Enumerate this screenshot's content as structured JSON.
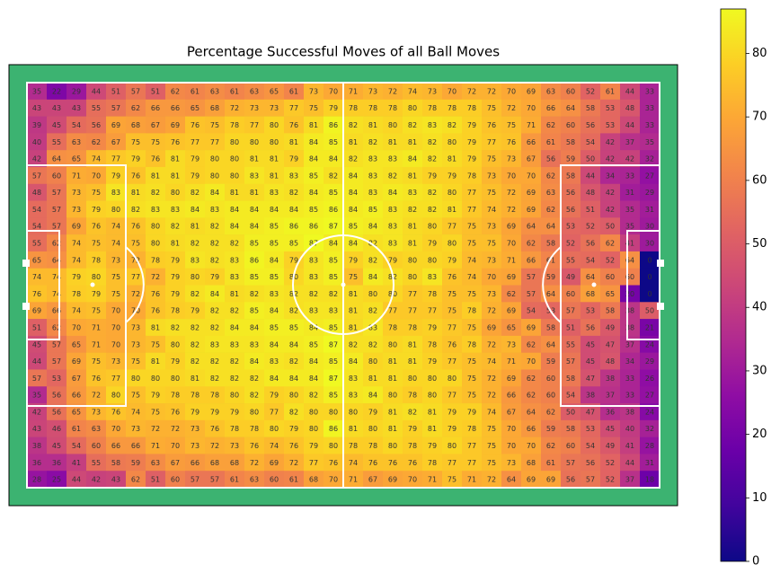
{
  "chart_data": {
    "type": "heatmap",
    "title": "Percentage Successful Moves of all Ball Moves",
    "colormap": "plasma",
    "clim": [
      0,
      87
    ],
    "cticks": [
      0,
      10,
      20,
      30,
      40,
      50,
      60,
      70,
      80
    ],
    "values": [
      [
        35,
        22,
        29,
        44,
        51,
        57,
        51,
        62,
        61,
        63,
        61,
        63,
        65,
        61,
        73,
        70,
        71,
        73,
        72,
        74,
        73,
        70,
        72,
        72,
        70,
        69,
        63,
        60,
        52,
        61,
        44,
        33
      ],
      [
        43,
        43,
        43,
        55,
        57,
        62,
        66,
        66,
        65,
        68,
        72,
        73,
        73,
        77,
        75,
        79,
        78,
        78,
        78,
        80,
        78,
        78,
        78,
        75,
        72,
        70,
        66,
        64,
        58,
        53,
        48,
        33
      ],
      [
        39,
        45,
        54,
        56,
        69,
        68,
        67,
        69,
        76,
        75,
        78,
        77,
        80,
        76,
        81,
        86,
        82,
        81,
        80,
        82,
        83,
        82,
        79,
        76,
        75,
        71,
        62,
        60,
        56,
        53,
        44,
        33
      ],
      [
        40,
        55,
        63,
        62,
        67,
        75,
        75,
        76,
        77,
        77,
        80,
        80,
        80,
        81,
        84,
        85,
        81,
        82,
        81,
        81,
        82,
        80,
        79,
        77,
        76,
        66,
        61,
        58,
        54,
        42,
        37,
        35
      ],
      [
        42,
        64,
        65,
        74,
        77,
        79,
        76,
        81,
        79,
        80,
        80,
        81,
        81,
        79,
        84,
        84,
        82,
        83,
        83,
        84,
        82,
        81,
        79,
        75,
        73,
        67,
        56,
        59,
        50,
        42,
        42,
        32
      ],
      [
        57,
        60,
        71,
        70,
        79,
        76,
        81,
        81,
        79,
        80,
        80,
        83,
        81,
        83,
        85,
        82,
        84,
        83,
        82,
        81,
        79,
        79,
        78,
        73,
        70,
        70,
        62,
        58,
        44,
        34,
        33,
        27
      ],
      [
        48,
        57,
        73,
        75,
        83,
        81,
        82,
        80,
        82,
        84,
        81,
        81,
        83,
        82,
        84,
        85,
        84,
        83,
        84,
        83,
        82,
        80,
        77,
        75,
        72,
        69,
        63,
        56,
        48,
        42,
        31,
        29
      ],
      [
        54,
        57,
        73,
        79,
        80,
        82,
        83,
        83,
        84,
        83,
        84,
        84,
        84,
        84,
        85,
        86,
        84,
        85,
        83,
        82,
        82,
        81,
        77,
        74,
        72,
        69,
        62,
        56,
        51,
        42,
        35,
        31
      ],
      [
        54,
        57,
        69,
        76,
        74,
        76,
        80,
        82,
        81,
        82,
        84,
        84,
        85,
        86,
        86,
        87,
        85,
        84,
        83,
        81,
        80,
        77,
        75,
        73,
        69,
        64,
        64,
        53,
        52,
        50,
        35,
        30
      ],
      [
        55,
        62,
        74,
        75,
        74,
        75,
        80,
        81,
        82,
        82,
        82,
        85,
        85,
        85,
        87,
        84,
        84,
        82,
        83,
        81,
        79,
        80,
        75,
        75,
        70,
        62,
        58,
        52,
        56,
        62,
        41,
        30
      ],
      [
        65,
        64,
        74,
        78,
        73,
        72,
        78,
        79,
        83,
        82,
        83,
        86,
        84,
        79,
        83,
        85,
        79,
        82,
        79,
        80,
        80,
        79,
        74,
        73,
        71,
        66,
        61,
        55,
        54,
        52,
        64,
        0
      ],
      [
        74,
        74,
        79,
        80,
        75,
        77,
        72,
        79,
        80,
        79,
        83,
        85,
        85,
        80,
        83,
        85,
        75,
        84,
        82,
        80,
        83,
        76,
        74,
        70,
        69,
        57,
        59,
        49,
        64,
        60,
        60,
        0
      ],
      [
        76,
        74,
        78,
        79,
        75,
        72,
        76,
        79,
        82,
        84,
        81,
        82,
        83,
        82,
        82,
        82,
        81,
        80,
        80,
        77,
        78,
        75,
        75,
        73,
        62,
        57,
        64,
        60,
        68,
        65,
        20,
        0
      ],
      [
        69,
        66,
        74,
        75,
        70,
        70,
        76,
        78,
        79,
        82,
        82,
        85,
        84,
        82,
        83,
        83,
        81,
        82,
        77,
        77,
        77,
        75,
        78,
        72,
        69,
        54,
        53,
        57,
        53,
        58,
        38,
        50
      ],
      [
        51,
        62,
        70,
        71,
        70,
        73,
        81,
        82,
        82,
        82,
        84,
        84,
        85,
        85,
        84,
        85,
        81,
        83,
        78,
        78,
        79,
        77,
        75,
        69,
        65,
        69,
        58,
        51,
        56,
        49,
        38,
        21
      ],
      [
        45,
        57,
        65,
        71,
        70,
        73,
        75,
        80,
        82,
        83,
        83,
        83,
        84,
        84,
        85,
        87,
        82,
        82,
        80,
        81,
        78,
        76,
        78,
        72,
        73,
        62,
        64,
        55,
        45,
        47,
        37,
        24
      ],
      [
        44,
        57,
        69,
        75,
        73,
        75,
        81,
        79,
        82,
        82,
        82,
        84,
        83,
        82,
        84,
        85,
        84,
        80,
        81,
        81,
        79,
        77,
        75,
        74,
        71,
        70,
        59,
        57,
        45,
        48,
        34,
        29
      ],
      [
        57,
        53,
        67,
        76,
        77,
        80,
        80,
        80,
        81,
        82,
        82,
        82,
        84,
        84,
        84,
        87,
        83,
        81,
        81,
        80,
        80,
        80,
        75,
        72,
        69,
        62,
        60,
        58,
        47,
        38,
        33,
        26
      ],
      [
        35,
        56,
        66,
        72,
        80,
        75,
        79,
        78,
        78,
        78,
        80,
        82,
        79,
        80,
        82,
        85,
        83,
        84,
        80,
        78,
        80,
        77,
        75,
        72,
        66,
        62,
        60,
        54,
        38,
        37,
        33,
        27
      ],
      [
        42,
        56,
        65,
        73,
        76,
        74,
        75,
        76,
        79,
        79,
        79,
        80,
        77,
        82,
        80,
        80,
        80,
        79,
        81,
        82,
        81,
        79,
        79,
        74,
        67,
        64,
        62,
        50,
        47,
        36,
        38,
        24
      ],
      [
        43,
        46,
        61,
        63,
        70,
        73,
        72,
        72,
        73,
        76,
        78,
        78,
        80,
        79,
        80,
        86,
        81,
        80,
        81,
        79,
        81,
        79,
        78,
        75,
        70,
        66,
        59,
        58,
        53,
        45,
        40,
        32
      ],
      [
        38,
        45,
        54,
        60,
        66,
        66,
        71,
        70,
        73,
        72,
        73,
        76,
        74,
        76,
        79,
        80,
        78,
        78,
        80,
        78,
        79,
        80,
        77,
        75,
        70,
        70,
        62,
        60,
        54,
        49,
        41,
        28
      ],
      [
        36,
        36,
        41,
        55,
        58,
        59,
        63,
        67,
        66,
        68,
        68,
        72,
        69,
        72,
        77,
        76,
        74,
        76,
        76,
        76,
        78,
        77,
        77,
        75,
        73,
        68,
        61,
        57,
        56,
        52,
        44,
        31
      ],
      [
        28,
        25,
        44,
        42,
        43,
        62,
        51,
        60,
        57,
        57,
        61,
        63,
        60,
        61,
        68,
        70,
        71,
        67,
        69,
        70,
        71,
        75,
        71,
        72,
        64,
        69,
        69,
        56,
        57,
        52,
        37,
        18
      ]
    ]
  }
}
